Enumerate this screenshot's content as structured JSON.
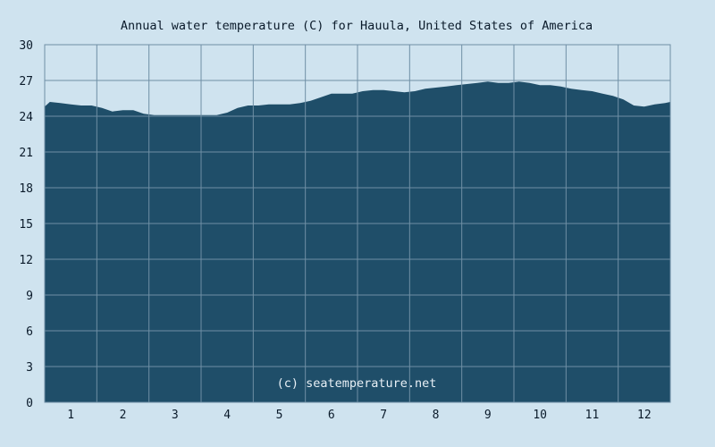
{
  "chart_data": {
    "type": "area",
    "title": "Annual water temperature (C) for Hauula, United States of America",
    "xlabel": "",
    "ylabel": "",
    "x_tick_labels": [
      "1",
      "2",
      "3",
      "4",
      "5",
      "6",
      "7",
      "8",
      "9",
      "10",
      "11",
      "12"
    ],
    "y_tick_labels": [
      "0",
      "3",
      "6",
      "9",
      "12",
      "15",
      "18",
      "21",
      "24",
      "27",
      "30"
    ],
    "ylim": [
      0,
      30
    ],
    "xlim": [
      0.5,
      12.5
    ],
    "grid": true,
    "credit": "(c) seatemperature.net",
    "colors": {
      "background": "#cfe3ef",
      "fill": "#1f4e69",
      "grid": "#6f8fa5"
    },
    "series": [
      {
        "x": [
          0.5,
          0.6,
          0.8,
          1.0,
          1.2,
          1.4,
          1.6,
          1.8,
          2.0,
          2.2,
          2.4,
          2.6,
          2.8,
          3.0,
          3.2,
          3.4,
          3.6,
          3.8,
          4.0,
          4.2,
          4.4,
          4.6,
          4.8,
          5.0,
          5.2,
          5.4,
          5.6,
          5.8,
          6.0,
          6.2,
          6.4,
          6.6,
          6.8,
          7.0,
          7.2,
          7.4,
          7.6,
          7.8,
          8.0,
          8.2,
          8.4,
          8.6,
          8.8,
          9.0,
          9.2,
          9.4,
          9.6,
          9.8,
          10.0,
          10.2,
          10.4,
          10.6,
          10.8,
          11.0,
          11.2,
          11.4,
          11.6,
          11.8,
          12.0,
          12.2,
          12.4,
          12.5
        ],
        "values": [
          24.8,
          25.2,
          25.1,
          25.0,
          24.9,
          24.9,
          24.7,
          24.4,
          24.5,
          24.5,
          24.2,
          24.1,
          24.1,
          24.1,
          24.1,
          24.1,
          24.1,
          24.1,
          24.3,
          24.7,
          24.9,
          24.9,
          25.0,
          25.0,
          25.0,
          25.1,
          25.3,
          25.6,
          25.9,
          25.9,
          25.9,
          26.1,
          26.2,
          26.2,
          26.1,
          26.0,
          26.1,
          26.3,
          26.4,
          26.5,
          26.6,
          26.7,
          26.8,
          26.9,
          26.8,
          26.8,
          26.9,
          26.8,
          26.6,
          26.6,
          26.5,
          26.3,
          26.2,
          26.1,
          25.9,
          25.7,
          25.4,
          24.9,
          24.8,
          25.0,
          25.1,
          25.2
        ]
      }
    ]
  }
}
